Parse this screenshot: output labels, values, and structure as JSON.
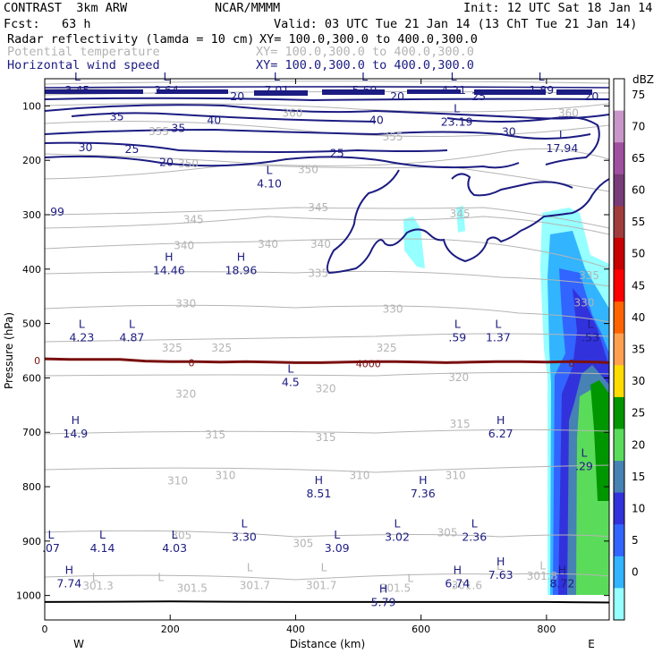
{
  "header": {
    "model": "CONTRAST  3km ARW",
    "org": "NCAR/MMMM",
    "init": "Init: 12 UTC Sat 18 Jan 14",
    "fcst": "Fcst:   63 h",
    "valid": "Valid: 03 UTC Tue 21 Jan 14 (13 ChT Tue 21 Jan 14)",
    "fields": [
      {
        "name": "Radar reflectivity (lamda = 10 cm)",
        "xy": "XY= 100.0,300.0 to 400.0,300.0"
      },
      {
        "name": "Potential temperature",
        "xy": "XY= 100.0,300.0 to 400.0,300.0"
      },
      {
        "name": "Horizontal wind speed",
        "xy": "XY= 100.0,300.0 to 400.0,300.0"
      }
    ]
  },
  "colors": {
    "wind": "#1c1c82",
    "theta": "#b4b4b4",
    "freezing": "#7a1010",
    "ground": "#000000"
  },
  "chart_data": {
    "type": "cross-section",
    "xlabel": "Distance (km)",
    "ylabel": "Pressure (hPa)",
    "xlim": [
      0,
      900
    ],
    "ylim": [
      1045,
      50
    ],
    "x_ticks": [
      "0",
      "200",
      "400",
      "600",
      "800"
    ],
    "y_ticks": [
      "100",
      "200",
      "300",
      "400",
      "500",
      "600",
      "700",
      "800",
      "900",
      "1000"
    ],
    "end_labels": {
      "left": "W",
      "right": "E"
    },
    "colorbar": {
      "unit": "dBZ",
      "levels": [
        "75",
        "70",
        "65",
        "60",
        "55",
        "50",
        "45",
        "40",
        "35",
        "30",
        "25",
        "20",
        "15",
        "10",
        "5",
        "0"
      ],
      "colors": [
        "#ffffff",
        "#c896c8",
        "#a050a0",
        "#783c78",
        "#a03c3c",
        "#c80000",
        "#ff0000",
        "#ff6400",
        "#ffa050",
        "#ffdc00",
        "#009600",
        "#5adc5a",
        "#4682b4",
        "#3232dc",
        "#3264ff",
        "#32b4ff",
        "#96ffff"
      ]
    },
    "theta_labels": [
      {
        "text": "360",
        "x": 395,
        "p": 112
      },
      {
        "text": "360",
        "x": 835,
        "p": 112
      },
      {
        "text": "355",
        "x": 182,
        "p": 145
      },
      {
        "text": "355",
        "x": 555,
        "p": 155
      },
      {
        "text": "350",
        "x": 229,
        "p": 205
      },
      {
        "text": "350",
        "x": 420,
        "p": 215
      },
      {
        "text": "345",
        "x": 237,
        "p": 307
      },
      {
        "text": "345",
        "x": 436,
        "p": 285
      },
      {
        "text": "345",
        "x": 662,
        "p": 297
      },
      {
        "text": "340",
        "x": 222,
        "p": 355
      },
      {
        "text": "340",
        "x": 356,
        "p": 353
      },
      {
        "text": "340",
        "x": 440,
        "p": 353
      },
      {
        "text": "335",
        "x": 436,
        "p": 406
      },
      {
        "text": "335",
        "x": 868,
        "p": 410
      },
      {
        "text": "330",
        "x": 225,
        "p": 462
      },
      {
        "text": "330",
        "x": 555,
        "p": 472
      },
      {
        "text": "330",
        "x": 860,
        "p": 460
      },
      {
        "text": "325",
        "x": 203,
        "p": 543
      },
      {
        "text": "325",
        "x": 282,
        "p": 543
      },
      {
        "text": "325",
        "x": 545,
        "p": 543
      },
      {
        "text": "320",
        "x": 225,
        "p": 628
      },
      {
        "text": "320",
        "x": 448,
        "p": 618
      },
      {
        "text": "320",
        "x": 660,
        "p": 598
      },
      {
        "text": "315",
        "x": 272,
        "p": 703
      },
      {
        "text": "315",
        "x": 448,
        "p": 708
      },
      {
        "text": "315",
        "x": 662,
        "p": 683
      },
      {
        "text": "310",
        "x": 212,
        "p": 788
      },
      {
        "text": "310",
        "x": 288,
        "p": 778
      },
      {
        "text": "310",
        "x": 502,
        "p": 778
      },
      {
        "text": "310",
        "x": 655,
        "p": 778
      },
      {
        "text": "305",
        "x": 218,
        "p": 888
      },
      {
        "text": "305",
        "x": 412,
        "p": 903
      },
      {
        "text": "305",
        "x": 642,
        "p": 883
      },
      {
        "text": "301.3",
        "x": 85,
        "p": 981
      },
      {
        "text": "301.5",
        "x": 235,
        "p": 985
      },
      {
        "text": "301.7",
        "x": 335,
        "p": 980
      },
      {
        "text": "301.7",
        "x": 441,
        "p": 980
      },
      {
        "text": "301.5",
        "x": 559,
        "p": 985
      },
      {
        "text": "301.6",
        "x": 673,
        "p": 980
      },
      {
        "text": "301.8",
        "x": 793,
        "p": 963
      },
      {
        "text": "L",
        "x": 80,
        "p": 965
      },
      {
        "text": "L",
        "x": 185,
        "p": 965
      },
      {
        "text": "L",
        "x": 327,
        "p": 947
      },
      {
        "text": "L",
        "x": 445,
        "p": 947
      },
      {
        "text": "L",
        "x": 583,
        "p": 967
      },
      {
        "text": "L",
        "x": 725,
        "p": 945
      },
      {
        "text": "L",
        "x": 794,
        "p": 944
      }
    ],
    "wind_labels": [
      {
        "text": "35",
        "x": 115,
        "p": 118
      },
      {
        "text": "40",
        "x": 270,
        "p": 125
      },
      {
        "text": "35",
        "x": 213,
        "p": 140
      },
      {
        "text": "30",
        "x": 65,
        "p": 175
      },
      {
        "text": "25",
        "x": 139,
        "p": 178
      },
      {
        "text": "20",
        "x": 194,
        "p": 202
      },
      {
        "text": "40",
        "x": 529,
        "p": 125
      },
      {
        "text": "25",
        "x": 466,
        "p": 186
      },
      {
        "text": "30",
        "x": 740,
        "p": 146
      },
      {
        "text": "20",
        "x": 307,
        "p": 81
      },
      {
        "text": "20",
        "x": 562,
        "p": 81
      },
      {
        "text": "25",
        "x": 692,
        "p": 81
      },
      {
        "text": "20",
        "x": 872,
        "p": 81
      },
      {
        "text": "99",
        "x": 20,
        "p": 293
      }
    ],
    "extrema": [
      {
        "letter": "L",
        "value": "3.45",
        "x": 52,
        "p": 53
      },
      {
        "letter": "L",
        "value": "3.64",
        "x": 194,
        "p": 53
      },
      {
        "letter": "L",
        "value": "7.01",
        "x": 370,
        "p": 53
      },
      {
        "letter": "L",
        "value": "5.69",
        "x": 510,
        "p": 53
      },
      {
        "letter": "L",
        "value": "4.21",
        "x": 652,
        "p": 53
      },
      {
        "letter": "L",
        "value": "1.89",
        "x": 792,
        "p": 53
      },
      {
        "letter": "L",
        "value": "23.19",
        "x": 657,
        "p": 112
      },
      {
        "letter": "L",
        "value": "17.94",
        "x": 825,
        "p": 160
      },
      {
        "letter": "L",
        "value": "4.10",
        "x": 358,
        "p": 225
      },
      {
        "letter": "H",
        "value": "14.46",
        "x": 198,
        "p": 385
      },
      {
        "letter": "H",
        "value": "18.96",
        "x": 313,
        "p": 385
      },
      {
        "letter": "L",
        "value": "4.23",
        "x": 59,
        "p": 508
      },
      {
        "letter": "L",
        "value": "4.87",
        "x": 139,
        "p": 508
      },
      {
        "letter": "L",
        "value": ".59",
        "x": 658,
        "p": 508
      },
      {
        "letter": "L",
        "value": "1.37",
        "x": 723,
        "p": 508
      },
      {
        "letter": "L",
        "value": ".53",
        "x": 870,
        "p": 508
      },
      {
        "letter": "L",
        "value": "4.5",
        "x": 392,
        "p": 590
      },
      {
        "letter": "H",
        "value": "14.9",
        "x": 49,
        "p": 685
      },
      {
        "letter": "H",
        "value": "6.27",
        "x": 727,
        "p": 685
      },
      {
        "letter": "L",
        "value": ".29",
        "x": 860,
        "p": 745
      },
      {
        "letter": "H",
        "value": "8.51",
        "x": 437,
        "p": 795
      },
      {
        "letter": "H",
        "value": "7.36",
        "x": 603,
        "p": 795
      },
      {
        "letter": "L",
        "value": "3.30",
        "x": 318,
        "p": 875
      },
      {
        "letter": "L",
        "value": "3.02",
        "x": 562,
        "p": 875
      },
      {
        "letter": "L",
        "value": "2.36",
        "x": 685,
        "p": 875
      },
      {
        "letter": "L",
        "value": ".07",
        "x": 10,
        "p": 895
      },
      {
        "letter": "L",
        "value": "4.14",
        "x": 92,
        "p": 895
      },
      {
        "letter": "L",
        "value": "4.03",
        "x": 207,
        "p": 895
      },
      {
        "letter": "L",
        "value": "3.09",
        "x": 466,
        "p": 895
      },
      {
        "letter": "H",
        "value": "7.74",
        "x": 39,
        "p": 960
      },
      {
        "letter": "H",
        "value": "6.74",
        "x": 658,
        "p": 960
      },
      {
        "letter": "H",
        "value": "7.63",
        "x": 727,
        "p": 945
      },
      {
        "letter": "H",
        "value": "8.72",
        "x": 825,
        "p": 960
      },
      {
        "letter": "H",
        "value": "5.79",
        "x": 540,
        "p": 995
      }
    ],
    "freezing_labels": [
      {
        "text": "0",
        "x": -12,
        "p": 568
      },
      {
        "text": "0",
        "x": 234,
        "p": 572
      },
      {
        "text": "4000",
        "x": 516,
        "p": 574
      },
      {
        "text": "0",
        "x": 840,
        "p": 573
      }
    ],
    "freezing_level": [
      [
        0,
        565
      ],
      [
        40,
        566
      ],
      [
        80,
        566
      ],
      [
        120,
        566
      ],
      [
        160,
        569
      ],
      [
        200,
        570
      ],
      [
        240,
        570
      ],
      [
        280,
        571
      ],
      [
        320,
        570
      ],
      [
        360,
        571
      ],
      [
        400,
        572
      ],
      [
        440,
        572
      ],
      [
        480,
        571
      ],
      [
        520,
        570
      ],
      [
        560,
        570
      ],
      [
        600,
        571
      ],
      [
        640,
        572
      ],
      [
        680,
        571
      ],
      [
        720,
        570
      ],
      [
        760,
        570
      ],
      [
        800,
        571
      ],
      [
        840,
        570
      ],
      [
        880,
        571
      ],
      [
        900,
        572
      ]
    ],
    "ground_level": [
      [
        0,
        1012
      ],
      [
        200,
        1011
      ],
      [
        400,
        1012
      ],
      [
        600,
        1012
      ],
      [
        800,
        1012
      ],
      [
        900,
        1013
      ]
    ]
  }
}
